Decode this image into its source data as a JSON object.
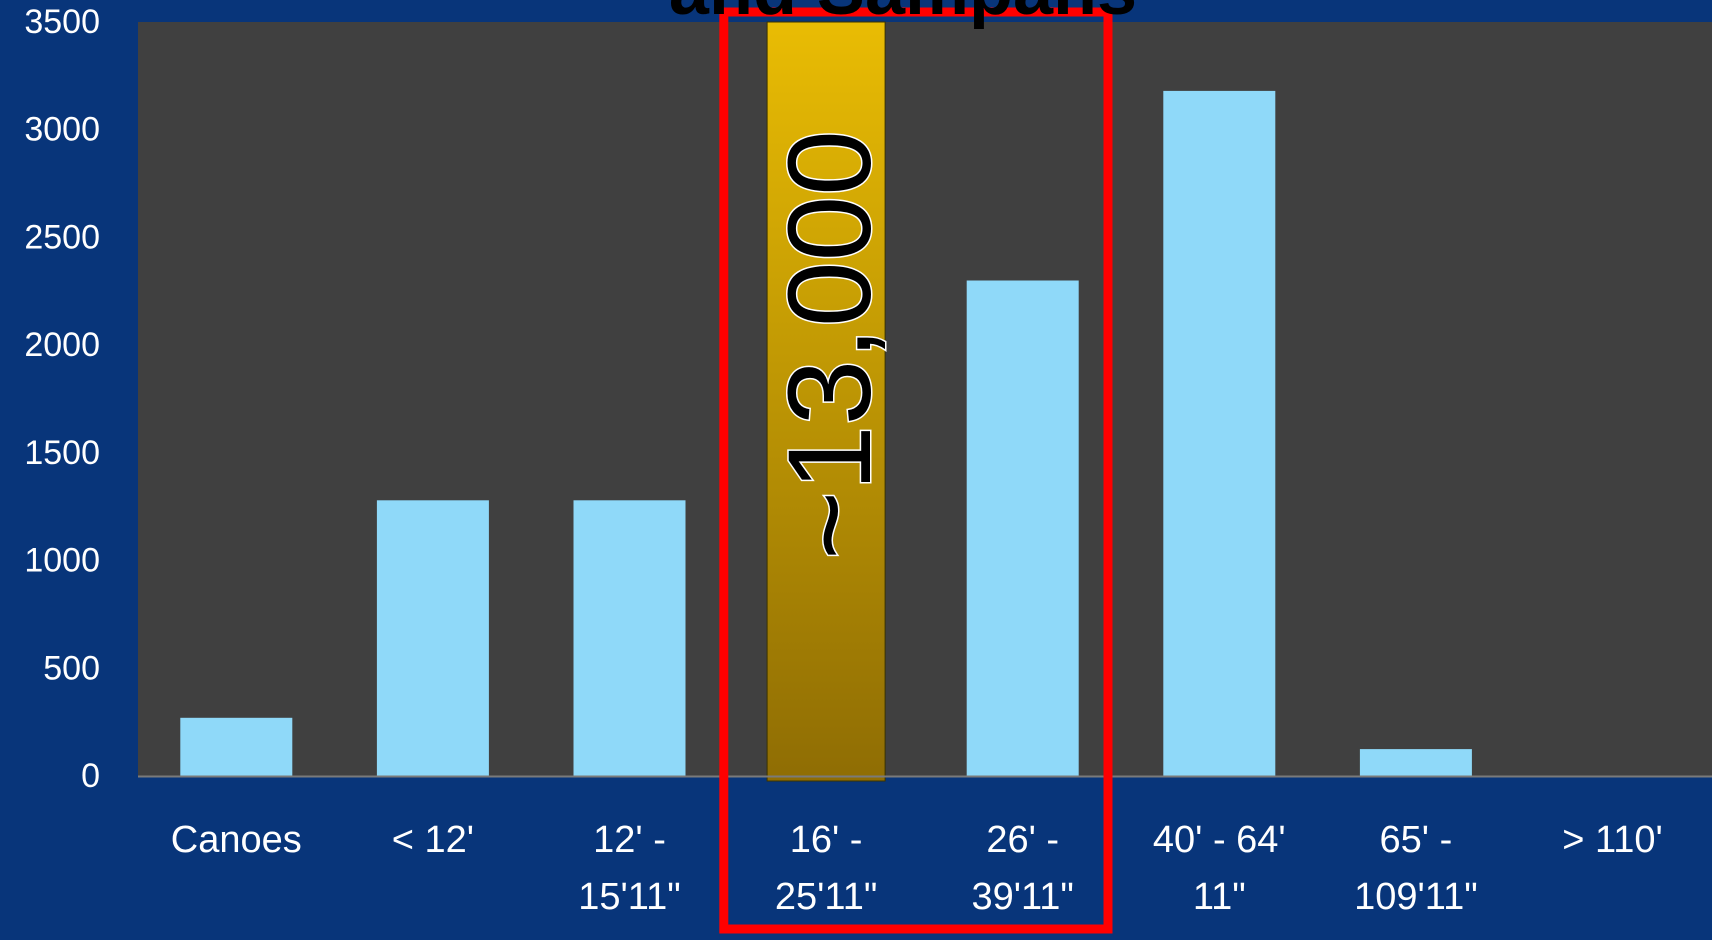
{
  "chart_data": {
    "type": "bar",
    "title": "and Sampans",
    "categories": [
      [
        "Canoes"
      ],
      [
        "< 12'"
      ],
      [
        "12' -",
        "15'11\""
      ],
      [
        "16' -",
        "25'11\""
      ],
      [
        "26' -",
        "39'11\""
      ],
      [
        "40' - 64'",
        "11\""
      ],
      [
        "65' -",
        "109'11\""
      ],
      [
        "> 110'"
      ]
    ],
    "values": [
      270,
      1280,
      1280,
      3500,
      2300,
      3180,
      125,
      0
    ],
    "ylim": [
      0,
      3500
    ],
    "yticks": [
      0,
      500,
      1000,
      1500,
      2000,
      2500,
      3000,
      3500
    ],
    "grid": false,
    "highlight": {
      "category_index": 3,
      "label": "~13,000",
      "bar_color_top": "#e9bc04",
      "bar_color_bottom": "#8f6d04"
    },
    "highlight_box": {
      "from_category": 3,
      "to_category": 4,
      "color": "#ff0000"
    },
    "colors": {
      "background": "#08357a",
      "plot_area": "#404040",
      "bar": "#8fd9f9",
      "tick_label": "#ffffff",
      "axis_line": "#7a7a7a",
      "title": "#000000"
    }
  }
}
